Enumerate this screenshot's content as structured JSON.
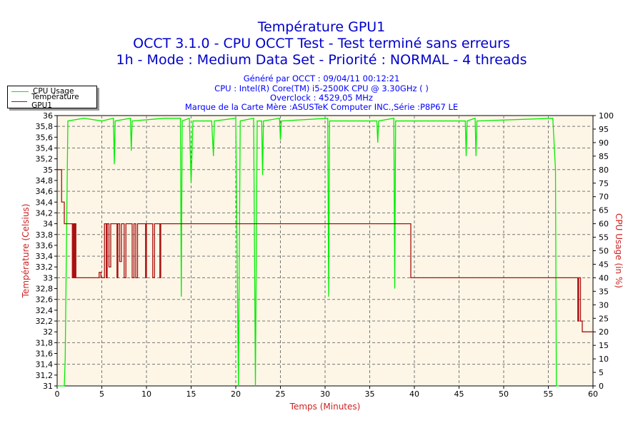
{
  "header": {
    "title": "Température GPU1",
    "subtitle": "OCCT 3.1.0 - CPU OCCT Test - Test terminé sans erreurs",
    "mode": "1h - Mode : Medium Data Set - Priorité : NORMAL - 4 threads",
    "generated": "Généré par OCCT : 09/04/11 00:12:21",
    "cpu": "CPU : Intel(R) Core(TM) i5-2500K CPU @ 3.30GHz (  )",
    "overclock": "Overclock : 4529,05 MHz",
    "board": "Marque de la Carte Mère :ASUSTeK Computer INC.,Série :P8P67 LE"
  },
  "chart_data": {
    "type": "line",
    "xlabel": "Temps (Minutes)",
    "ylabel": "Température (Celsius)",
    "y2label": "CPU Usage (in %)",
    "xlim": [
      0,
      60
    ],
    "ylim": [
      31,
      36
    ],
    "y2lim": [
      0,
      100
    ],
    "grid": true,
    "legend": "top-left",
    "xticks": [
      "0",
      "5",
      "10",
      "15",
      "20",
      "25",
      "30",
      "35",
      "40",
      "45",
      "50",
      "55",
      "60"
    ],
    "yticks": [
      "31",
      "31,2",
      "31,4",
      "31,6",
      "31,8",
      "32",
      "32,2",
      "32,4",
      "32,6",
      "32,8",
      "33",
      "33,2",
      "33,4",
      "33,6",
      "33,8",
      "34",
      "34,2",
      "34,4",
      "34,6",
      "34,8",
      "35",
      "35,2",
      "35,4",
      "35,6",
      "35,8",
      "36"
    ],
    "y2ticks": [
      "0",
      "5",
      "10",
      "15",
      "20",
      "25",
      "30",
      "35",
      "40",
      "45",
      "50",
      "55",
      "60",
      "65",
      "70",
      "75",
      "80",
      "85",
      "90",
      "95",
      "100"
    ],
    "colors": {
      "cpu": "#00ee00",
      "temp": "#aa1111"
    },
    "series": [
      {
        "name": "CPU Usage",
        "axis": "right",
        "points": [
          [
            0,
            0
          ],
          [
            0.8,
            0
          ],
          [
            0.9,
            10
          ],
          [
            1.0,
            40
          ],
          [
            1.2,
            98
          ],
          [
            3,
            99
          ],
          [
            5,
            98
          ],
          [
            6.3,
            99
          ],
          [
            6.4,
            82
          ],
          [
            6.5,
            98
          ],
          [
            8.2,
            99
          ],
          [
            8.3,
            87
          ],
          [
            8.4,
            98
          ],
          [
            12,
            99
          ],
          [
            13.8,
            99
          ],
          [
            13.9,
            33
          ],
          [
            14,
            98
          ],
          [
            14.8,
            99
          ],
          [
            15,
            75
          ],
          [
            15.2,
            98
          ],
          [
            17.3,
            98
          ],
          [
            17.5,
            85
          ],
          [
            17.6,
            98
          ],
          [
            20,
            99
          ],
          [
            20.3,
            0
          ],
          [
            20.5,
            98
          ],
          [
            22,
            99
          ],
          [
            22.2,
            0
          ],
          [
            22.4,
            98
          ],
          [
            22.9,
            98
          ],
          [
            23,
            78
          ],
          [
            23.1,
            98
          ],
          [
            24.9,
            99
          ],
          [
            25,
            91
          ],
          [
            25.1,
            98
          ],
          [
            30.3,
            99
          ],
          [
            30.4,
            33
          ],
          [
            30.5,
            98
          ],
          [
            35.8,
            98
          ],
          [
            35.9,
            90
          ],
          [
            36,
            98
          ],
          [
            37.7,
            99
          ],
          [
            37.8,
            36
          ],
          [
            37.9,
            98
          ],
          [
            45.7,
            98
          ],
          [
            45.8,
            85
          ],
          [
            45.9,
            98
          ],
          [
            46.8,
            99
          ],
          [
            46.9,
            85
          ],
          [
            47,
            98
          ],
          [
            55.5,
            99
          ],
          [
            55.8,
            80
          ],
          [
            55.9,
            0
          ],
          [
            56,
            0
          ],
          [
            56.2,
            0
          ]
        ]
      },
      {
        "name": "Température GPU1",
        "axis": "left",
        "points": [
          [
            0,
            35
          ],
          [
            0.3,
            35
          ],
          [
            0.5,
            34.4
          ],
          [
            0.8,
            34
          ],
          [
            1.6,
            34
          ],
          [
            1.7,
            33
          ],
          [
            1.8,
            34
          ],
          [
            1.9,
            33
          ],
          [
            2,
            34
          ],
          [
            2.1,
            33
          ],
          [
            4.5,
            33
          ],
          [
            4.7,
            33.1
          ],
          [
            4.9,
            33
          ],
          [
            5.2,
            33
          ],
          [
            5.3,
            34
          ],
          [
            5.5,
            33
          ],
          [
            5.6,
            34
          ],
          [
            5.8,
            33.2
          ],
          [
            6,
            34
          ],
          [
            6.6,
            34
          ],
          [
            6.7,
            33
          ],
          [
            6.8,
            34
          ],
          [
            7,
            33.3
          ],
          [
            7.2,
            34
          ],
          [
            7.5,
            33
          ],
          [
            7.7,
            34
          ],
          [
            8.2,
            34
          ],
          [
            8.4,
            33
          ],
          [
            8.6,
            34
          ],
          [
            8.8,
            33
          ],
          [
            9,
            34
          ],
          [
            9.8,
            34
          ],
          [
            9.9,
            33
          ],
          [
            10,
            34
          ],
          [
            10.5,
            34
          ],
          [
            10.7,
            33
          ],
          [
            10.9,
            34
          ],
          [
            11.3,
            34
          ],
          [
            11.5,
            33
          ],
          [
            11.6,
            34
          ],
          [
            39.3,
            34
          ],
          [
            39.6,
            33
          ],
          [
            58.1,
            33
          ],
          [
            58.3,
            32.2
          ],
          [
            58.4,
            33
          ],
          [
            58.6,
            32.2
          ],
          [
            58.8,
            32
          ],
          [
            60,
            32
          ]
        ]
      }
    ]
  }
}
